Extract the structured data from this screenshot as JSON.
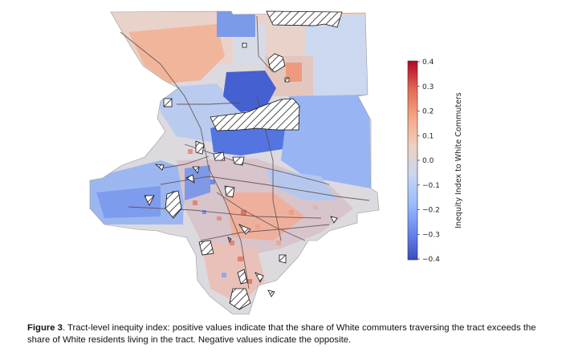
{
  "figure": {
    "caption_label": "Figure 3",
    "caption_text": ". Tract-level inequity index: positive values indicate that the share of White commuters traversing the tract exceeds the share of White residents living in the tract. Negative values indicate the opposite."
  },
  "colorbar": {
    "label": "Inequity Index to White Commuters",
    "min": -0.4,
    "max": 0.4,
    "ticks": [
      "0.4",
      "0.3",
      "0.2",
      "0.1",
      "0.0",
      "−0.1",
      "−0.2",
      "−0.3",
      "−0.4"
    ],
    "colormap": [
      "#3b4cc0",
      "#6788ee",
      "#9abbff",
      "#c9d7f0",
      "#edd1c2",
      "#f7a889",
      "#e26952",
      "#b40426"
    ]
  }
}
